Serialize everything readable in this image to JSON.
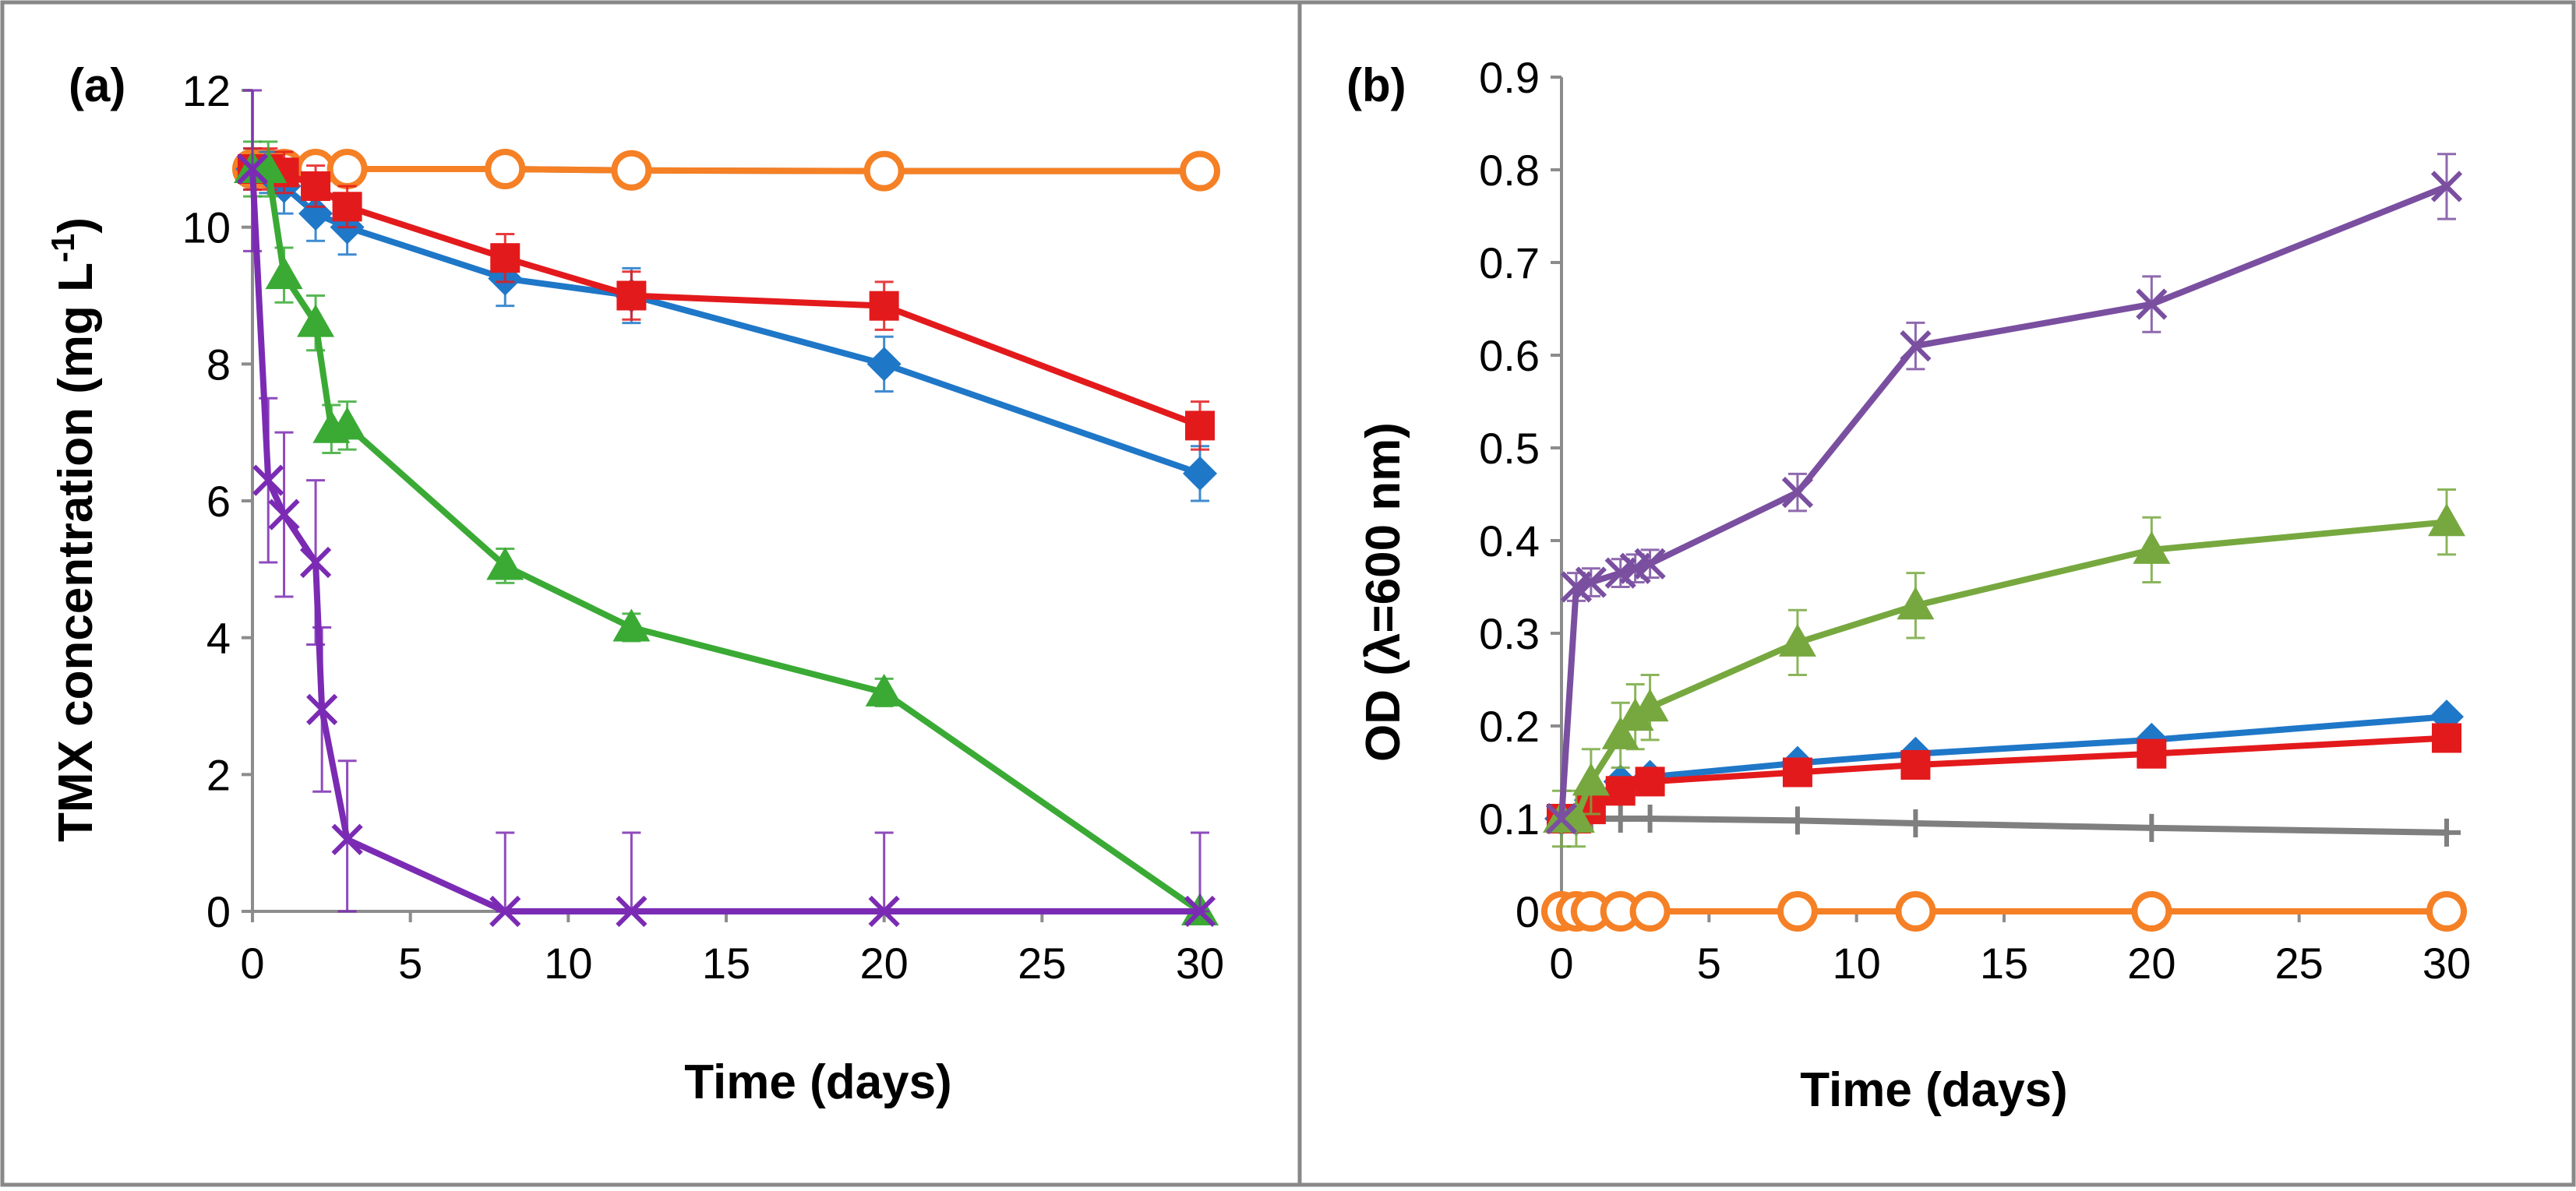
{
  "chart_data": [
    {
      "panel_label": "(a)",
      "type": "line",
      "ylabel_main": "TMX concentration (mg L",
      "ylabel_sup": "-1",
      "ylabel_close": ")",
      "xlabel": "Time (days)",
      "xlim": [
        0,
        30
      ],
      "ylim": [
        0,
        12
      ],
      "xticks": [
        0,
        5,
        10,
        15,
        20,
        25,
        30
      ],
      "yticks": [
        0,
        2,
        4,
        6,
        8,
        10,
        12
      ],
      "grid": false,
      "series": [
        {
          "name": "gray control",
          "color": "#7f7f7f",
          "marker": "none",
          "x": [
            0,
            0.5,
            1,
            2,
            3,
            8,
            12,
            20,
            30
          ],
          "y": [
            10.85,
            10.85,
            10.85,
            10.85,
            10.85,
            10.85,
            10.83,
            10.82,
            10.82
          ],
          "err": [
            0,
            0,
            0,
            0,
            0,
            0,
            0,
            0,
            0
          ]
        },
        {
          "name": "orange open circles",
          "color": "#f58025",
          "marker": "circle-open",
          "x": [
            0,
            0.5,
            1,
            2,
            3,
            8,
            12,
            20,
            30
          ],
          "y": [
            10.85,
            10.85,
            10.85,
            10.85,
            10.85,
            10.85,
            10.83,
            10.82,
            10.82
          ],
          "err": [
            0,
            0,
            0,
            0,
            0,
            0,
            0,
            0,
            0
          ]
        },
        {
          "name": "blue diamonds",
          "color": "#1f77c8",
          "marker": "diamond",
          "x": [
            0,
            0.5,
            1,
            2,
            3,
            8,
            12,
            20,
            30
          ],
          "y": [
            10.85,
            10.8,
            10.6,
            10.2,
            10.0,
            9.25,
            9.0,
            8.0,
            6.4
          ],
          "err": [
            0.3,
            0.3,
            0.4,
            0.4,
            0.4,
            0.4,
            0.4,
            0.4,
            0.4
          ]
        },
        {
          "name": "red squares",
          "color": "#e31a1c",
          "marker": "square",
          "x": [
            0,
            0.5,
            1,
            2,
            3,
            8,
            12,
            20,
            30
          ],
          "y": [
            10.85,
            10.85,
            10.8,
            10.6,
            10.3,
            9.55,
            9.0,
            8.85,
            7.1
          ],
          "err": [
            0.3,
            0.3,
            0.3,
            0.3,
            0.3,
            0.35,
            0.35,
            0.35,
            0.35
          ]
        },
        {
          "name": "green triangles",
          "color": "#3aaa35",
          "marker": "triangle",
          "x": [
            0,
            0.5,
            1,
            2,
            2.5,
            3,
            8,
            12,
            20,
            30
          ],
          "y": [
            10.85,
            10.85,
            9.3,
            8.6,
            7.05,
            7.1,
            5.05,
            4.15,
            3.2,
            0
          ],
          "err": [
            0.4,
            0.4,
            0.4,
            0.4,
            0.35,
            0.35,
            0.25,
            0.2,
            0.2,
            0
          ]
        },
        {
          "name": "purple crosses",
          "color": "#7b2bb3",
          "marker": "x",
          "x": [
            0,
            0.5,
            1,
            2,
            2.2,
            3,
            8,
            12,
            20,
            30
          ],
          "y": [
            10.85,
            6.3,
            5.8,
            5.1,
            2.95,
            1.05,
            0,
            0,
            0,
            0
          ],
          "err": [
            1.2,
            1.2,
            1.2,
            1.2,
            1.2,
            1.15,
            1.15,
            1.15,
            1.15,
            1.15
          ]
        }
      ]
    },
    {
      "panel_label": "(b)",
      "type": "line",
      "ylabel_main": "OD (λ=600 nm)",
      "xlabel": "Time (days)",
      "xlim": [
        0,
        30
      ],
      "ylim": [
        0,
        0.9
      ],
      "xticks": [
        0,
        5,
        10,
        15,
        20,
        25,
        30
      ],
      "yticks": [
        0,
        0.1,
        0.2,
        0.3,
        0.4,
        0.5,
        0.6,
        0.7,
        0.8,
        0.9
      ],
      "grid": false,
      "series": [
        {
          "name": "orange open circles",
          "color": "#f58025",
          "marker": "circle-open",
          "x": [
            0,
            0.5,
            1,
            2,
            3,
            8,
            12,
            20,
            30
          ],
          "y": [
            0,
            0,
            0,
            0,
            0,
            0,
            0,
            0,
            0
          ],
          "err": [
            0,
            0,
            0,
            0,
            0,
            0,
            0,
            0,
            0
          ]
        },
        {
          "name": "gray plus",
          "color": "#7f7f7f",
          "marker": "plus",
          "x": [
            0,
            0.5,
            1,
            2,
            3,
            8,
            12,
            20,
            30
          ],
          "y": [
            0.1,
            0.1,
            0.1,
            0.1,
            0.1,
            0.098,
            0.095,
            0.09,
            0.085
          ],
          "err": [
            0,
            0,
            0,
            0,
            0,
            0,
            0,
            0,
            0
          ]
        },
        {
          "name": "blue diamonds",
          "color": "#1f77c8",
          "marker": "diamond",
          "x": [
            0,
            0.5,
            1,
            2,
            3,
            8,
            12,
            20,
            30
          ],
          "y": [
            0.1,
            0.1,
            0.12,
            0.14,
            0.145,
            0.16,
            0.17,
            0.185,
            0.21
          ],
          "err": [
            0,
            0,
            0,
            0,
            0,
            0,
            0,
            0,
            0
          ]
        },
        {
          "name": "red squares",
          "color": "#e31a1c",
          "marker": "square",
          "x": [
            0,
            0.5,
            1,
            2,
            3,
            8,
            12,
            20,
            30
          ],
          "y": [
            0.1,
            0.1,
            0.11,
            0.13,
            0.14,
            0.15,
            0.158,
            0.17,
            0.187
          ],
          "err": [
            0,
            0,
            0,
            0,
            0,
            0,
            0,
            0,
            0
          ]
        },
        {
          "name": "green triangles",
          "color": "#77a83f",
          "marker": "triangle",
          "x": [
            0,
            0.5,
            1,
            2,
            2.5,
            3,
            8,
            12,
            20,
            30
          ],
          "y": [
            0.1,
            0.1,
            0.14,
            0.19,
            0.21,
            0.22,
            0.29,
            0.33,
            0.39,
            0.42
          ],
          "err": [
            0.03,
            0.03,
            0.035,
            0.035,
            0.035,
            0.035,
            0.035,
            0.035,
            0.035,
            0.035
          ]
        },
        {
          "name": "purple crosses",
          "color": "#7a4fa0",
          "marker": "x",
          "x": [
            0,
            0.5,
            1,
            2,
            2.5,
            3,
            8,
            12,
            20,
            30
          ],
          "y": [
            0.1,
            0.35,
            0.355,
            0.365,
            0.37,
            0.375,
            0.452,
            0.61,
            0.655,
            0.782
          ],
          "err": [
            0,
            0.015,
            0.015,
            0.015,
            0.015,
            0.015,
            0.02,
            0.025,
            0.03,
            0.035
          ]
        }
      ]
    }
  ]
}
